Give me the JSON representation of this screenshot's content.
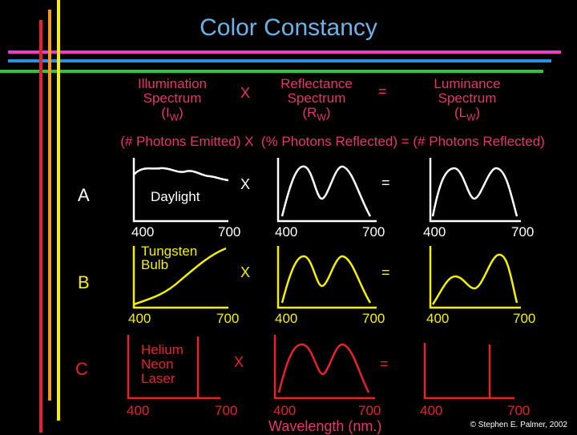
{
  "title": "Color Constancy",
  "headers": {
    "illumination": [
      "Illumination",
      "Spectrum",
      "(I",
      "W",
      ")"
    ],
    "reflectance": [
      "Reflectance",
      "Spectrum",
      "(R",
      "W",
      ")"
    ],
    "luminance": [
      "Luminance",
      "Spectrum",
      "(L",
      "W",
      ")"
    ],
    "times": "X",
    "equals": "=",
    "equation": "(# Photons Emitted) X  (% Photons Reflected) = (# Photons Reflected)"
  },
  "rows": [
    {
      "label": "A",
      "illuminant": "Daylight",
      "times": "X",
      "equals": "=",
      "ticks": [
        "400",
        "700",
        "400",
        "700",
        "400",
        "700"
      ],
      "color": "#ffffff"
    },
    {
      "label": "B",
      "illuminant": "Tungsten Bulb",
      "illuminant_lines": [
        "Tungsten",
        "Bulb"
      ],
      "times": "X",
      "equals": "=",
      "ticks": [
        "400",
        "700",
        "400",
        "700",
        "400",
        "700"
      ],
      "color": "#f4f000"
    },
    {
      "label": "C",
      "illuminant": "Helium Neon Laser",
      "illuminant_lines": [
        "Helium",
        "Neon",
        "Laser"
      ],
      "times": "X",
      "equals": "=",
      "ticks": [
        "400",
        "700",
        "400",
        "700",
        "400",
        "700"
      ],
      "color": "#e8222c"
    }
  ],
  "xaxis_label": "Wavelength (nm.)",
  "copyright": "© Stephen E. Palmer, 2002",
  "colors": {
    "title": "#6fb3e6",
    "header": "#e8356a",
    "row_a": "#ffffff",
    "row_b": "#f4f000",
    "row_c": "#e8222c",
    "stripe_red": "#e8222c",
    "stripe_orange": "#f39a1e",
    "stripe_yellow": "#f4f000",
    "stripe_magenta": "#e83ec9",
    "stripe_blue": "#2f8fe0",
    "stripe_green": "#36c23a"
  }
}
